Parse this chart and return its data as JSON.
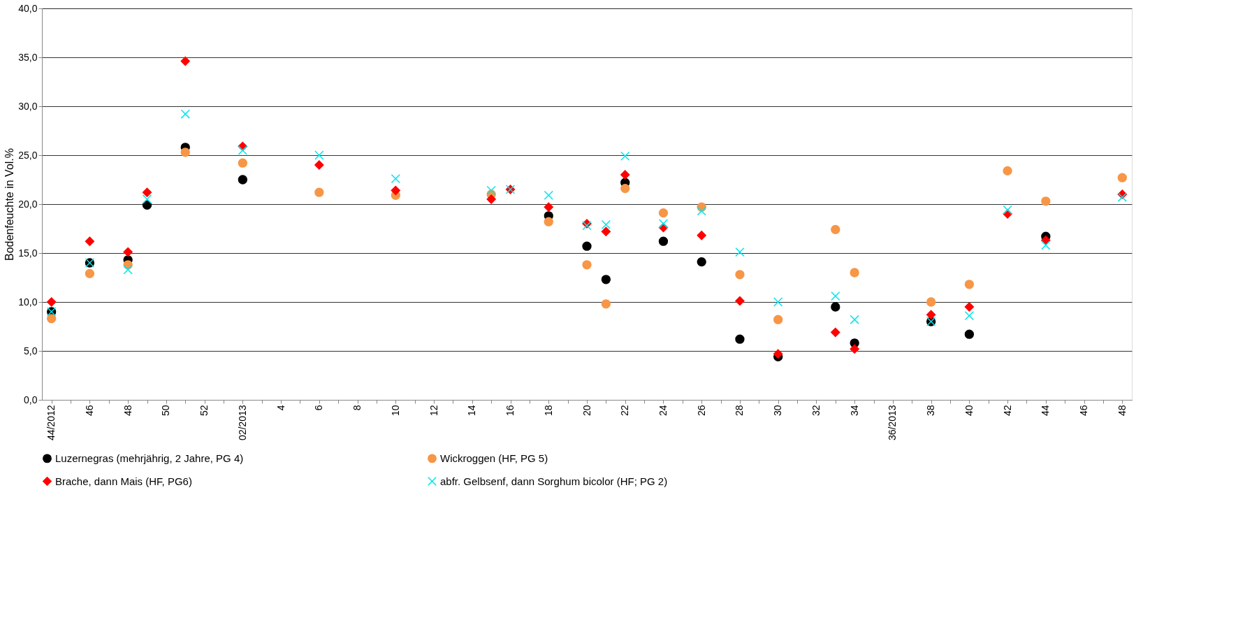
{
  "chart_data": {
    "type": "scatter",
    "ylabel": "Bodenfeuchte in Vol.%",
    "categories": [
      "44/2012",
      null,
      "46",
      null,
      "48",
      null,
      "50",
      null,
      "52",
      null,
      "02/2013",
      null,
      "4",
      null,
      "6",
      null,
      "8",
      null,
      "10",
      null,
      "12",
      null,
      "14",
      null,
      "16",
      null,
      "18",
      null,
      "20",
      null,
      "22",
      null,
      "24",
      null,
      "26",
      null,
      "28",
      null,
      "30",
      null,
      "32",
      null,
      "34",
      null,
      "36/2013",
      null,
      "38",
      null,
      "40",
      null,
      "42",
      null,
      "44",
      null,
      "46",
      null,
      "48"
    ],
    "series": [
      {
        "name": "Luzernegras (mehrjährig, 2 Jahre, PG 4)",
        "color": "#000000",
        "marker": "circle",
        "values": [
          9.0,
          null,
          14.0,
          null,
          14.3,
          19.9,
          null,
          25.8,
          null,
          null,
          22.5,
          null,
          null,
          null,
          null,
          null,
          null,
          null,
          null,
          null,
          null,
          null,
          null,
          null,
          null,
          null,
          18.8,
          null,
          15.7,
          12.3,
          22.2,
          null,
          16.2,
          null,
          14.1,
          null,
          6.2,
          null,
          4.4,
          null,
          null,
          9.5,
          5.8,
          null,
          null,
          null,
          8.0,
          null,
          6.7,
          null,
          null,
          null,
          16.7,
          null,
          null,
          null,
          null
        ]
      },
      {
        "name": "Wickroggen (HF, PG 5)",
        "color": "#f79646",
        "marker": "circle",
        "values": [
          8.3,
          null,
          12.9,
          null,
          13.8,
          null,
          null,
          25.3,
          null,
          null,
          24.2,
          null,
          null,
          null,
          21.2,
          null,
          null,
          null,
          20.9,
          null,
          null,
          null,
          null,
          21.0,
          null,
          null,
          18.2,
          null,
          13.8,
          9.8,
          21.6,
          null,
          19.1,
          null,
          19.7,
          null,
          12.8,
          null,
          8.2,
          null,
          null,
          17.4,
          13.0,
          null,
          null,
          null,
          10.0,
          null,
          11.8,
          null,
          23.4,
          null,
          20.3,
          null,
          null,
          null,
          22.7
        ]
      },
      {
        "name": "Brache, dann Mais (HF, PG6)",
        "color": "#ff0000",
        "marker": "diamond",
        "values": [
          10.0,
          null,
          16.2,
          null,
          15.1,
          21.2,
          null,
          34.6,
          null,
          null,
          25.9,
          null,
          null,
          null,
          24.0,
          null,
          null,
          null,
          21.4,
          null,
          null,
          null,
          null,
          20.5,
          21.5,
          null,
          19.7,
          null,
          18.0,
          17.2,
          23.0,
          null,
          17.6,
          null,
          16.8,
          null,
          10.1,
          null,
          4.7,
          null,
          null,
          6.9,
          5.2,
          null,
          null,
          null,
          8.7,
          null,
          9.5,
          null,
          19.0,
          null,
          16.3,
          null,
          null,
          null,
          21.0
        ]
      },
      {
        "name": "abfr. Gelbsenf, dann Sorghum bicolor (HF; PG 2)",
        "color": "#00e5ee",
        "marker": "cross",
        "values": [
          9.0,
          null,
          14.0,
          null,
          13.3,
          20.5,
          null,
          29.2,
          null,
          null,
          25.5,
          null,
          null,
          null,
          25.0,
          null,
          null,
          null,
          22.6,
          null,
          null,
          null,
          null,
          21.4,
          21.5,
          null,
          20.9,
          null,
          17.8,
          17.9,
          24.9,
          null,
          18.0,
          null,
          19.3,
          null,
          15.1,
          null,
          10.0,
          null,
          null,
          10.6,
          8.2,
          null,
          null,
          null,
          8.0,
          null,
          8.6,
          null,
          19.4,
          null,
          15.8,
          null,
          null,
          null,
          20.7
        ]
      }
    ],
    "ylim": [
      0,
      40
    ],
    "yticks": [
      {
        "value": 0,
        "label": "0,0"
      },
      {
        "value": 5,
        "label": "5,0"
      },
      {
        "value": 10,
        "label": "10,0"
      },
      {
        "value": 15,
        "label": "15,0"
      },
      {
        "value": 20,
        "label": "20,0"
      },
      {
        "value": 25,
        "label": "25,0"
      },
      {
        "value": 30,
        "label": "30,0"
      },
      {
        "value": 35,
        "label": "35,0"
      },
      {
        "value": 40,
        "label": "40,0"
      }
    ],
    "grid": "y",
    "legend": "bottom"
  }
}
